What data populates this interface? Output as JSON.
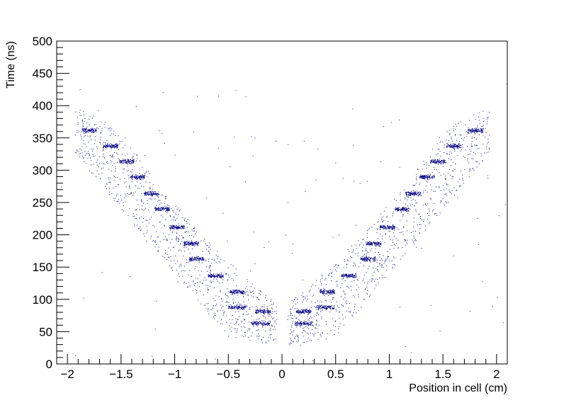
{
  "chart_data": {
    "type": "scatter",
    "title": "",
    "xlabel": "Position in cell (cm)",
    "ylabel": "Time (ns)",
    "xlim": [
      -2.1,
      2.1
    ],
    "ylim": [
      0,
      500
    ],
    "x_ticks": [
      -2,
      -1.5,
      -1,
      -0.5,
      0,
      0.5,
      1,
      1.5,
      2
    ],
    "x_tick_labels": [
      "−2",
      "−1.5",
      "−1",
      "−0.5",
      "0",
      "0.5",
      "1",
      "1.5",
      "2"
    ],
    "y_ticks": [
      0,
      50,
      100,
      150,
      200,
      250,
      300,
      350,
      400,
      450,
      500
    ],
    "y_tick_labels": [
      "0",
      "50",
      "100",
      "150",
      "200",
      "250",
      "300",
      "350",
      "400",
      "450",
      "500"
    ],
    "marker_color": "#000080",
    "grid": false,
    "legend": "none",
    "dense_clusters": [
      {
        "x_center": -1.8,
        "x_width": 0.1,
        "y": 362
      },
      {
        "x_center": -1.6,
        "x_width": 0.1,
        "y": 338
      },
      {
        "x_center": -1.45,
        "x_width": 0.1,
        "y": 314
      },
      {
        "x_center": -1.35,
        "x_width": 0.1,
        "y": 290
      },
      {
        "x_center": -1.22,
        "x_width": 0.1,
        "y": 264
      },
      {
        "x_center": -1.12,
        "x_width": 0.1,
        "y": 240
      },
      {
        "x_center": -0.98,
        "x_width": 0.1,
        "y": 212
      },
      {
        "x_center": -0.85,
        "x_width": 0.1,
        "y": 187
      },
      {
        "x_center": -0.8,
        "x_width": 0.1,
        "y": 163
      },
      {
        "x_center": -0.62,
        "x_width": 0.1,
        "y": 137
      },
      {
        "x_center": -0.42,
        "x_width": 0.1,
        "y": 112
      },
      {
        "x_center": -0.42,
        "x_width": 0.12,
        "y": 88
      },
      {
        "x_center": -0.18,
        "x_width": 0.1,
        "y": 82
      },
      {
        "x_center": -0.2,
        "x_width": 0.12,
        "y": 63
      },
      {
        "x_center": 0.2,
        "x_width": 0.12,
        "y": 63
      },
      {
        "x_center": 0.2,
        "x_width": 0.1,
        "y": 82
      },
      {
        "x_center": 0.4,
        "x_width": 0.12,
        "y": 88
      },
      {
        "x_center": 0.42,
        "x_width": 0.1,
        "y": 112
      },
      {
        "x_center": 0.62,
        "x_width": 0.1,
        "y": 137
      },
      {
        "x_center": 0.8,
        "x_width": 0.1,
        "y": 163
      },
      {
        "x_center": 0.85,
        "x_width": 0.1,
        "y": 187
      },
      {
        "x_center": 0.98,
        "x_width": 0.1,
        "y": 212
      },
      {
        "x_center": 1.12,
        "x_width": 0.1,
        "y": 240
      },
      {
        "x_center": 1.22,
        "x_width": 0.1,
        "y": 264
      },
      {
        "x_center": 1.35,
        "x_width": 0.1,
        "y": 290
      },
      {
        "x_center": 1.45,
        "x_width": 0.1,
        "y": 314
      },
      {
        "x_center": 1.6,
        "x_width": 0.1,
        "y": 338
      },
      {
        "x_center": 1.8,
        "x_width": 0.1,
        "y": 362
      }
    ],
    "envelope": {
      "description": "V-shaped distribution, time increases with |position|",
      "points_abs_x": [
        0.05,
        0.25,
        0.5,
        0.75,
        1.0,
        1.25,
        1.5,
        1.75,
        1.9
      ],
      "points_y_min": [
        30,
        35,
        40,
        90,
        140,
        190,
        240,
        290,
        320
      ],
      "points_y_max": [
        95,
        120,
        160,
        200,
        250,
        300,
        360,
        385,
        395
      ]
    },
    "approx_point_count": 3000
  }
}
